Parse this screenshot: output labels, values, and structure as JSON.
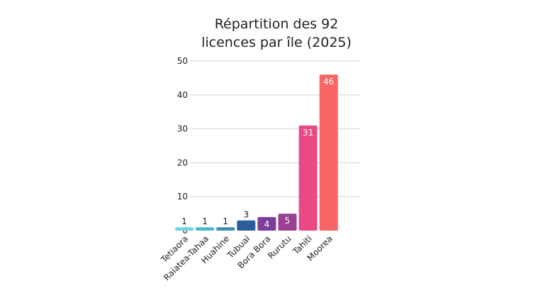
{
  "chart_data": {
    "type": "bar",
    "title": [
      "Répartition des 92",
      "licences par île (2025)"
    ],
    "xlabel": "",
    "ylabel": "",
    "categories": [
      "Tetiaora",
      "Raiatea-Tahaa",
      "Huahine",
      "Tubuai",
      "Bora Bora",
      "Rurutu",
      "Tahiti",
      "Moorea"
    ],
    "values": [
      1,
      1,
      1,
      3,
      4,
      5,
      31,
      46
    ],
    "colors": [
      "#6fd6dc",
      "#4bb8cc",
      "#3a8fb0",
      "#2c5f99",
      "#7d3f9a",
      "#9b3f93",
      "#e84a87",
      "#f86565"
    ],
    "ylim": [
      0,
      50
    ],
    "yticks": [
      0,
      10,
      20,
      30,
      40,
      50
    ],
    "grid": true,
    "legend": "none"
  }
}
